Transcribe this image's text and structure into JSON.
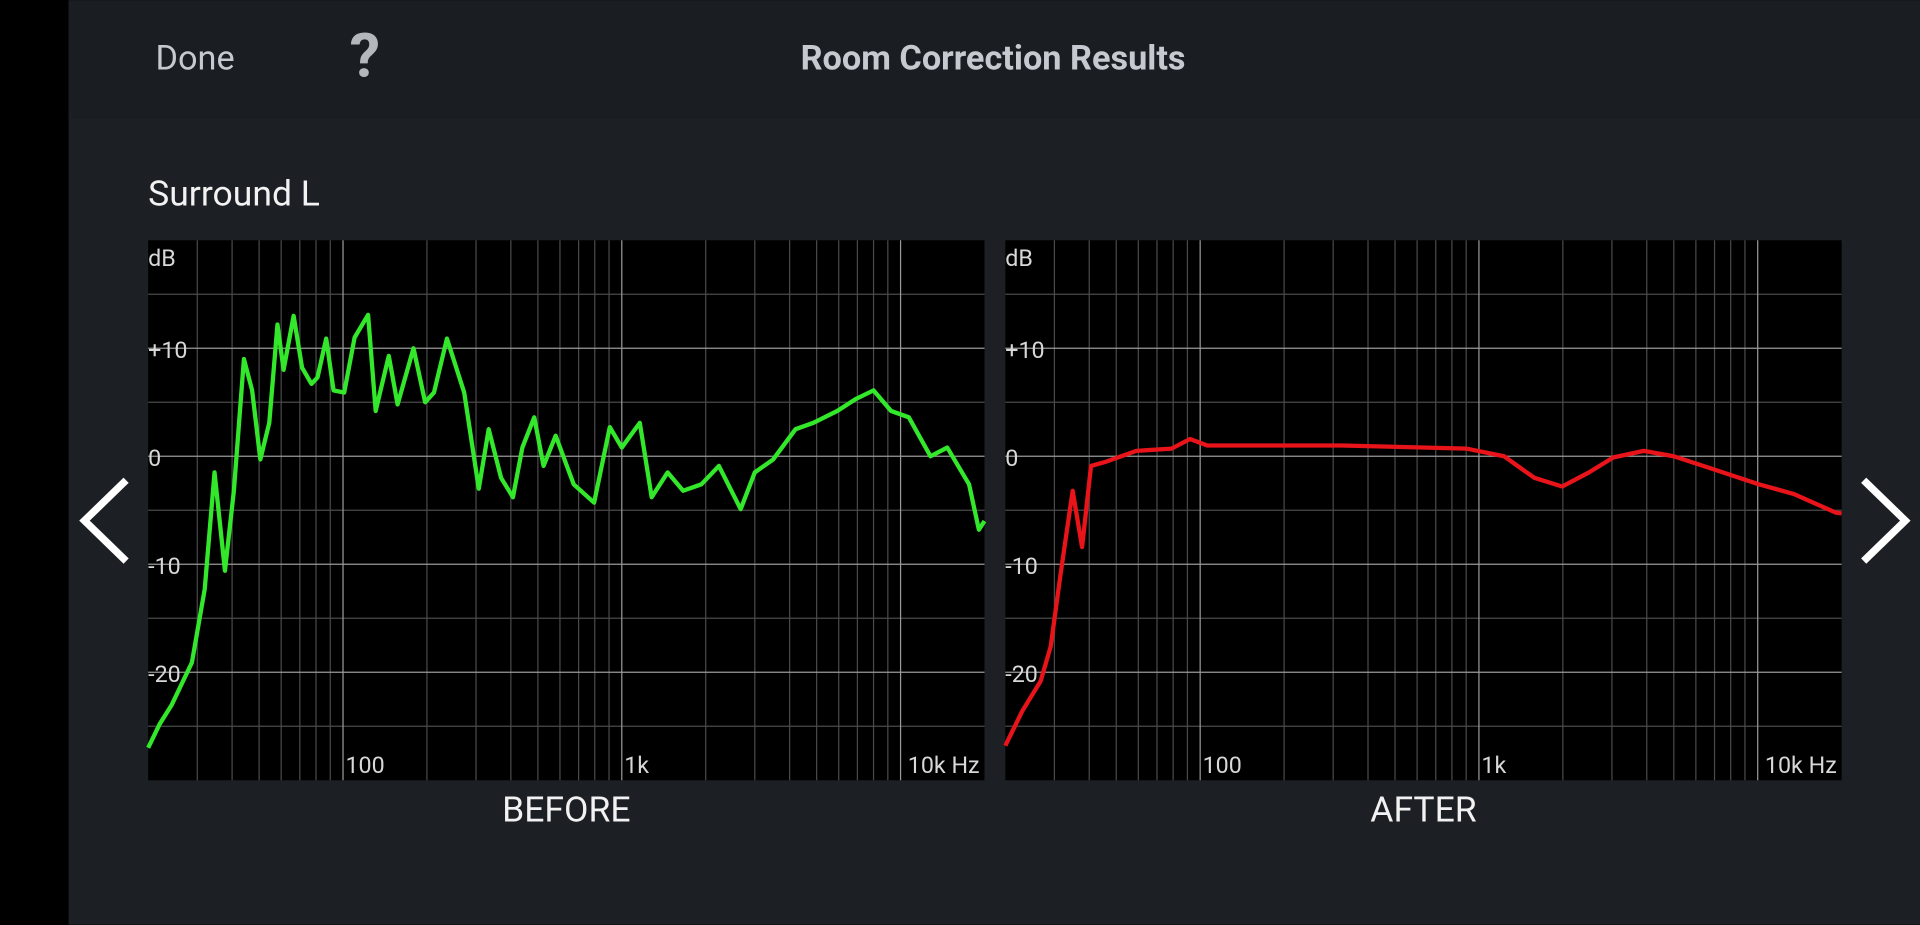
{
  "header": {
    "done": "Done",
    "help": "?",
    "title": "Room Correction Results"
  },
  "channel": "Surround L",
  "chart_data": [
    {
      "type": "line",
      "title": "BEFORE",
      "y_label": "dB",
      "xscale": "log",
      "xlim": [
        20,
        20000
      ],
      "ylim": [
        -30,
        20
      ],
      "xticks": [
        100,
        {
          "value": 1000,
          "label": "1k"
        },
        {
          "value": 10000,
          "label": "10k Hz"
        }
      ],
      "x_minor_ticks": [
        30,
        40,
        50,
        60,
        70,
        80,
        90,
        200,
        300,
        400,
        500,
        600,
        700,
        800,
        900,
        2000,
        3000,
        4000,
        5000,
        6000,
        7000,
        8000,
        9000
      ],
      "yticks": [
        {
          "value": 10,
          "label": "+10"
        },
        0,
        -10,
        -20
      ],
      "y_minor_ticks": [
        15,
        5,
        -5,
        -15,
        -25
      ],
      "grid": true,
      "x": [
        20,
        22,
        24.3,
        28.7,
        31.9,
        34.6,
        37.7,
        40.6,
        44.1,
        47.2,
        50.5,
        54.4,
        58.2,
        61.2,
        66.5,
        71.3,
        77.1,
        81,
        87,
        92.5,
        101,
        110,
        123,
        131,
        146,
        157,
        179,
        197,
        212,
        236,
        272,
        307,
        333,
        369,
        407,
        440,
        485,
        524,
        579,
        672,
        796,
        906,
        1000,
        1160,
        1280,
        1460,
        1660,
        1930,
        2230,
        2670,
        3000,
        3490,
        4200,
        4870,
        5930,
        6900,
        8000,
        9240,
        10700,
        12800,
        14700,
        17600,
        19100,
        20000
      ],
      "series": [
        {
          "color": "#33e82a",
          "values": [
            -27,
            -24.8,
            -23,
            -19.1,
            -12.3,
            -1.5,
            -10.6,
            -3.2,
            9,
            6.1,
            -0.3,
            3.1,
            12.2,
            8,
            13,
            8.2,
            6.7,
            7.3,
            10.9,
            6.1,
            5.9,
            11,
            13.1,
            4.2,
            9.3,
            4.8,
            10,
            5,
            5.9,
            10.9,
            5.9,
            -3,
            2.5,
            -2,
            -3.8,
            0.8,
            3.6,
            -0.9,
            1.9,
            -2.6,
            -4.3,
            2.7,
            0.8,
            3.1,
            -3.8,
            -1.5,
            -3.2,
            -2.6,
            -0.9,
            -4.9,
            -1.5,
            -0.3,
            2.5,
            3.1,
            4.2,
            5.3,
            6.1,
            4.2,
            3.6,
            0,
            0.8,
            -2.6,
            -6.8,
            -6
          ]
        }
      ]
    },
    {
      "type": "line",
      "title": "AFTER",
      "y_label": "dB",
      "xscale": "log",
      "xlim": [
        20,
        20000
      ],
      "ylim": [
        -30,
        20
      ],
      "xticks": [
        100,
        {
          "value": 1000,
          "label": "1k"
        },
        {
          "value": 10000,
          "label": "10k Hz"
        }
      ],
      "x_minor_ticks": [
        30,
        40,
        50,
        60,
        70,
        80,
        90,
        200,
        300,
        400,
        500,
        600,
        700,
        800,
        900,
        2000,
        3000,
        4000,
        5000,
        6000,
        7000,
        8000,
        9000
      ],
      "yticks": [
        {
          "value": 10,
          "label": "+10"
        },
        0,
        -10,
        -20
      ],
      "y_minor_ticks": [
        15,
        5,
        -5,
        -15,
        -25
      ],
      "grid": true,
      "x": [
        20,
        23,
        26.8,
        29.1,
        31.5,
        34.9,
        37.7,
        40.6,
        46,
        59,
        79,
        92,
        106,
        322,
        906,
        1230,
        1580,
        1990,
        2480,
        3040,
        3900,
        5000,
        6740,
        10100,
        13500,
        19000,
        20000
      ],
      "series": [
        {
          "color": "#e8141a",
          "values": [
            -26.8,
            -23.6,
            -20.8,
            -17.6,
            -11.1,
            -3.2,
            -8.4,
            -0.9,
            -0.5,
            0.5,
            0.7,
            1.6,
            1,
            1,
            0.7,
            0,
            -2,
            -2.8,
            -1.5,
            -0.1,
            0.5,
            0,
            -1.1,
            -2.6,
            -3.5,
            -5.2,
            -5.3
          ]
        }
      ]
    }
  ]
}
